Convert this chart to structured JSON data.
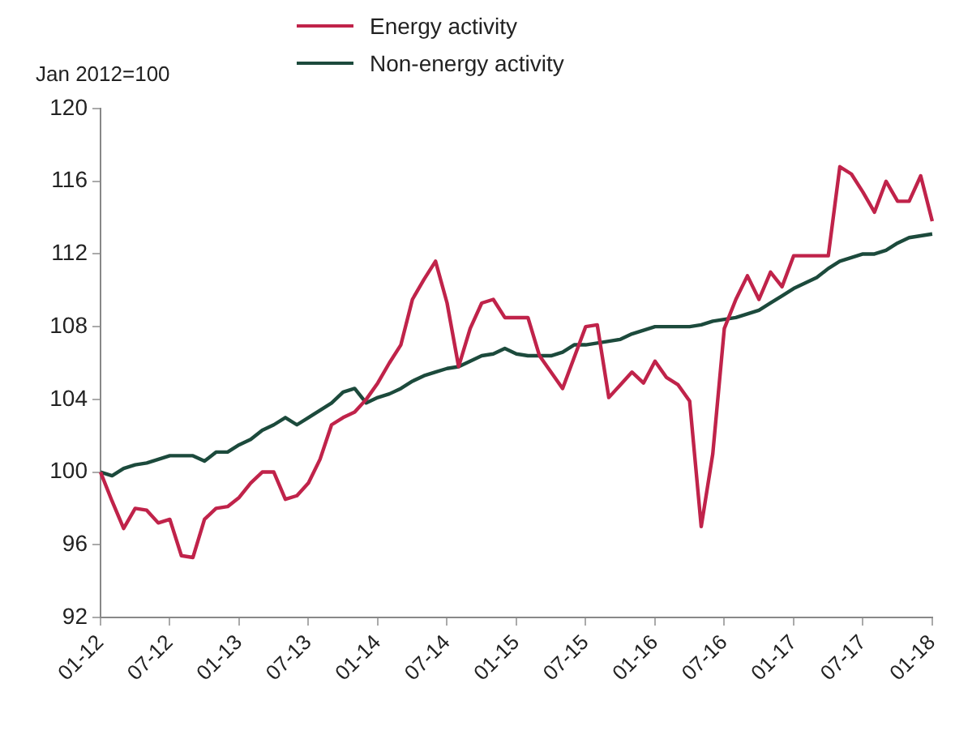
{
  "chart_data": {
    "type": "line",
    "ylabel": "Jan 2012=100",
    "categories": [
      "01-12",
      null,
      null,
      null,
      null,
      null,
      "07-12",
      null,
      null,
      null,
      null,
      null,
      "01-13",
      null,
      null,
      null,
      null,
      null,
      "07-13",
      null,
      null,
      null,
      null,
      null,
      "01-14",
      null,
      null,
      null,
      null,
      null,
      "07-14",
      null,
      null,
      null,
      null,
      null,
      "01-15",
      null,
      null,
      null,
      null,
      null,
      "07-15",
      null,
      null,
      null,
      null,
      null,
      "01-16",
      null,
      null,
      null,
      null,
      null,
      "07-16",
      null,
      null,
      null,
      null,
      null,
      "01-17",
      null,
      null,
      null,
      null,
      null,
      "07-17",
      null,
      null,
      null,
      null,
      null,
      "01-18"
    ],
    "series": [
      {
        "name": "Energy activity",
        "color": "#c0234a",
        "values": [
          100,
          98.4,
          96.9,
          98.0,
          97.9,
          97.2,
          97.4,
          95.4,
          95.3,
          97.4,
          98.0,
          98.1,
          98.6,
          99.4,
          100.0,
          100.0,
          98.5,
          98.7,
          99.4,
          100.7,
          102.6,
          103.0,
          103.3,
          104.0,
          104.9,
          106.0,
          107.0,
          109.5,
          110.6,
          111.6,
          109.3,
          105.8,
          107.9,
          109.3,
          109.5,
          108.5,
          108.5,
          108.5,
          106.4,
          105.5,
          104.6,
          106.3,
          108.0,
          108.1,
          104.1,
          104.8,
          105.5,
          104.9,
          106.1,
          105.2,
          104.8,
          103.9,
          97.0,
          101.0,
          107.9,
          109.5,
          110.8,
          109.5,
          111.0,
          110.2,
          111.9,
          111.9,
          111.9,
          111.9,
          116.8,
          116.4,
          115.4,
          114.3,
          116.0,
          114.9,
          114.9,
          116.3,
          113.8
        ]
      },
      {
        "name": "Non-energy activity",
        "color": "#1c4a3c",
        "values": [
          100,
          99.8,
          100.2,
          100.4,
          100.5,
          100.7,
          100.9,
          100.9,
          100.9,
          100.6,
          101.1,
          101.1,
          101.5,
          101.8,
          102.3,
          102.6,
          103.0,
          102.6,
          103.0,
          103.4,
          103.8,
          104.4,
          104.6,
          103.8,
          104.1,
          104.3,
          104.6,
          105.0,
          105.3,
          105.5,
          105.7,
          105.8,
          106.1,
          106.4,
          106.5,
          106.8,
          106.5,
          106.4,
          106.4,
          106.4,
          106.6,
          107.0,
          107.0,
          107.1,
          107.2,
          107.3,
          107.6,
          107.8,
          108.0,
          108.0,
          108.0,
          108.0,
          108.1,
          108.3,
          108.4,
          108.5,
          108.7,
          108.9,
          109.3,
          109.7,
          110.1,
          110.4,
          110.7,
          111.2,
          111.6,
          111.8,
          112.0,
          112.0,
          112.2,
          112.6,
          112.9,
          113.0,
          113.1
        ]
      }
    ],
    "ylim": [
      92,
      120
    ],
    "yticks": [
      92,
      96,
      100,
      104,
      108,
      112,
      116,
      120
    ],
    "grid": false,
    "legend": "top",
    "marker": "none",
    "line_style": "solid"
  }
}
